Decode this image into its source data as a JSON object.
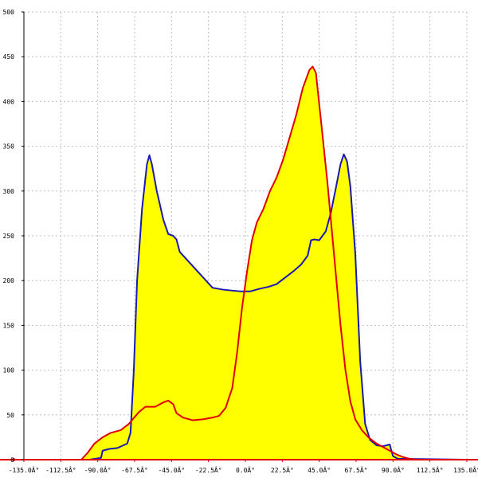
{
  "chart_data": {
    "type": "area",
    "title": "",
    "xlabel": "",
    "ylabel": "",
    "xlim": [
      -135,
      135
    ],
    "ylim": [
      0,
      500
    ],
    "grid": true,
    "x_ticks": [
      -135,
      -112.5,
      -90,
      -67.5,
      -45,
      -22.5,
      0,
      22.5,
      45,
      67.5,
      90,
      112.5,
      135
    ],
    "x_tick_labels": [
      "-135.0Â°",
      "-112.5Â°",
      "-90.0Â°",
      "-67.5Â°",
      "-45.0Â°",
      "-22.5Â°",
      "0.0Â°",
      "22.5Â°",
      "45.0Â°",
      "67.5Â°",
      "90.0Â°",
      "112.5Â°",
      "135.0Â°"
    ],
    "y_ticks": [
      0,
      50,
      100,
      150,
      200,
      250,
      300,
      350,
      400,
      450,
      500
    ],
    "y_tick_labels": [
      "0",
      "50",
      "100",
      "150",
      "200",
      "250",
      "300",
      "350",
      "400",
      "450",
      "500"
    ],
    "fill_color": "#ffff00",
    "series": [
      {
        "color": "#1a1ab0",
        "points": [
          [
            -135,
            0
          ],
          [
            -95,
            0
          ],
          [
            -88,
            2
          ],
          [
            -87,
            10
          ],
          [
            -83,
            12
          ],
          [
            -78,
            13
          ],
          [
            -72,
            18
          ],
          [
            -70,
            30
          ],
          [
            -68,
            100
          ],
          [
            -66,
            200
          ],
          [
            -63,
            280
          ],
          [
            -60,
            330
          ],
          [
            -58.5,
            340
          ],
          [
            -57,
            330
          ],
          [
            -54,
            300
          ],
          [
            -50,
            268
          ],
          [
            -47,
            252
          ],
          [
            -44,
            250
          ],
          [
            -42,
            246
          ],
          [
            -40,
            232
          ],
          [
            -34,
            220
          ],
          [
            -27,
            206
          ],
          [
            -20,
            192
          ],
          [
            -14,
            190
          ],
          [
            -9,
            189
          ],
          [
            -3,
            188
          ],
          [
            3,
            188
          ],
          [
            9,
            191
          ],
          [
            14,
            193
          ],
          [
            19,
            196
          ],
          [
            24,
            203
          ],
          [
            29,
            210
          ],
          [
            34,
            218
          ],
          [
            38,
            228
          ],
          [
            40,
            245
          ],
          [
            42,
            246
          ],
          [
            45,
            245
          ],
          [
            49,
            255
          ],
          [
            52,
            275
          ],
          [
            55,
            302
          ],
          [
            58,
            330
          ],
          [
            60,
            341
          ],
          [
            62,
            333
          ],
          [
            64,
            305
          ],
          [
            67,
            230
          ],
          [
            70,
            110
          ],
          [
            73,
            40
          ],
          [
            76,
            22
          ],
          [
            80,
            16
          ],
          [
            84,
            15
          ],
          [
            88,
            17
          ],
          [
            89,
            10
          ],
          [
            90,
            4
          ],
          [
            93,
            1
          ],
          [
            135,
            0
          ]
        ]
      },
      {
        "color": "#e00000",
        "points": [
          [
            -135,
            0
          ],
          [
            -100,
            0
          ],
          [
            -96,
            8
          ],
          [
            -92,
            18
          ],
          [
            -87,
            25
          ],
          [
            -82,
            30
          ],
          [
            -76,
            33
          ],
          [
            -71,
            40
          ],
          [
            -65,
            53
          ],
          [
            -61,
            59
          ],
          [
            -55,
            59
          ],
          [
            -50,
            64
          ],
          [
            -47,
            66
          ],
          [
            -44,
            62
          ],
          [
            -42,
            52
          ],
          [
            -38,
            47
          ],
          [
            -32,
            44
          ],
          [
            -26,
            45
          ],
          [
            -20,
            47
          ],
          [
            -16,
            49
          ],
          [
            -12,
            58
          ],
          [
            -8,
            80
          ],
          [
            -5,
            120
          ],
          [
            -2,
            170
          ],
          [
            1,
            210
          ],
          [
            4,
            245
          ],
          [
            7,
            265
          ],
          [
            11,
            280
          ],
          [
            15,
            300
          ],
          [
            19,
            315
          ],
          [
            23,
            335
          ],
          [
            27,
            360
          ],
          [
            31,
            385
          ],
          [
            35,
            415
          ],
          [
            39,
            435
          ],
          [
            41,
            439
          ],
          [
            43,
            432
          ],
          [
            46,
            380
          ],
          [
            50,
            310
          ],
          [
            54,
            230
          ],
          [
            58,
            150
          ],
          [
            61,
            100
          ],
          [
            64,
            65
          ],
          [
            67,
            45
          ],
          [
            71,
            33
          ],
          [
            75,
            25
          ],
          [
            80,
            18
          ],
          [
            84,
            14
          ],
          [
            88,
            10
          ],
          [
            92,
            6
          ],
          [
            96,
            3
          ],
          [
            100,
            1
          ],
          [
            105,
            0
          ],
          [
            135,
            0
          ]
        ]
      }
    ]
  }
}
